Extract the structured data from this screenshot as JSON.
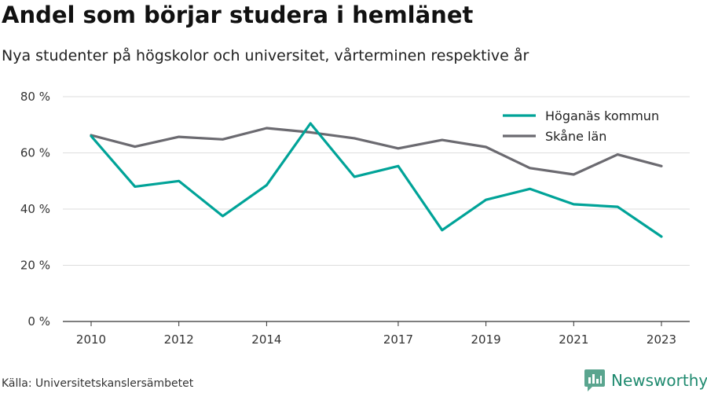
{
  "header": {
    "title": "Andel som börjar studera i hemlänet",
    "subtitle": "Nya studenter på högskolor och universitet, vårterminen respektive år"
  },
  "footer": {
    "source": "Källa: Universitetskanslersämbetet",
    "brand": "Newsworthy",
    "brand_icon": "bar-chart-logo-icon"
  },
  "colors": {
    "hoganas": "#00a398",
    "skane": "#6b6a70",
    "grid": "#dddddd",
    "axis": "#333333",
    "brand": "#1f8a6f"
  },
  "chart_data": {
    "type": "line",
    "title": "Andel som börjar studera i hemlänet",
    "subtitle": "Nya studenter på högskolor och universitet, vårterminen respektive år",
    "xlabel": "",
    "ylabel": "",
    "x": [
      2010,
      2011,
      2012,
      2013,
      2014,
      2015,
      2016,
      2017,
      2018,
      2019,
      2020,
      2021,
      2022,
      2023
    ],
    "xticks": [
      2010,
      2012,
      2014,
      2017,
      2019,
      2021,
      2023
    ],
    "ylim": [
      0,
      80
    ],
    "yticks": [
      0,
      20,
      40,
      60,
      80
    ],
    "ytick_labels": [
      "0 %",
      "20 %",
      "40 %",
      "60 %",
      "80 %"
    ],
    "grid": true,
    "legend_position": "top-right",
    "series": [
      {
        "name": "Höganäs kommun",
        "color": "#00a398",
        "values": [
          66,
          48,
          50,
          37.5,
          48.5,
          70.5,
          51.5,
          55.3,
          32.5,
          43.3,
          47.2,
          41.7,
          40.8,
          30.2
        ]
      },
      {
        "name": "Skåne län",
        "color": "#6b6a70",
        "values": [
          66.3,
          62.2,
          65.7,
          64.8,
          68.8,
          67.3,
          65.2,
          61.6,
          64.6,
          62.1,
          54.6,
          52.3,
          59.4,
          55.3
        ]
      }
    ]
  }
}
